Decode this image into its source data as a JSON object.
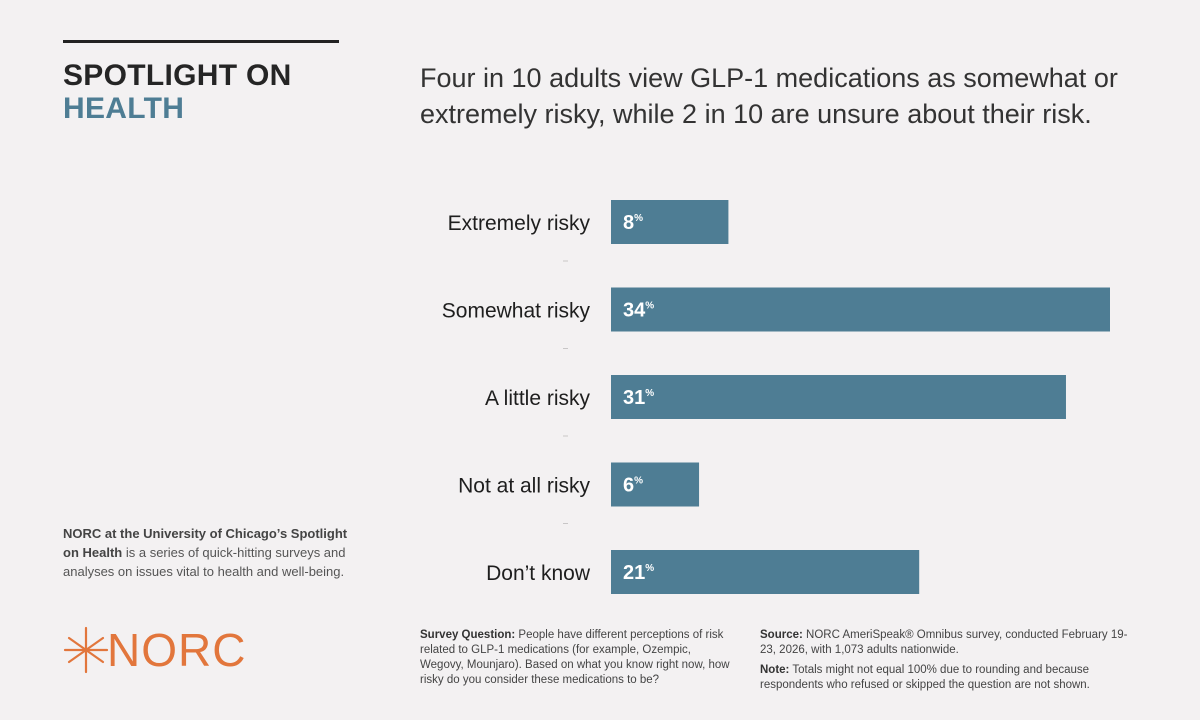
{
  "brand": {
    "line1": "SPOTLIGHT ON",
    "line2": "HEALTH"
  },
  "headline": "Four in 10 adults view GLP-1 medications as somewhat or extremely risky, while 2 in 10 are unsure about their risk.",
  "about": {
    "bold": "NORC at the University of Chicago’s Spotlight on Health",
    "text": " is a series of quick-hitting surveys and analyses on issues vital to health and well-being."
  },
  "logo": {
    "text": "NORC"
  },
  "footer": {
    "question_label": "Survey Question:",
    "question_text": " People have different perceptions of risk related to GLP-1 medications (for example, Ozempic, Wegovy, Mounjaro). Based on what you know right now, how risky do you consider these medications to be?",
    "source_label": "Source:",
    "source_text": " NORC AmeriSpeak® Omnibus survey, conducted February 19-23, 2026, with 1,073 adults nationwide.",
    "note_label": "Note:",
    "note_text": " Totals might not equal 100% due to rounding and because respondents who refused or skipped the question are not shown."
  },
  "colors": {
    "bar": "#4e7d94",
    "accent": "#e2763c",
    "brand_blue": "#4e7d94"
  },
  "chart_data": {
    "type": "bar",
    "orientation": "horizontal",
    "categories": [
      "Extremely risky",
      "Somewhat risky",
      "A little risky",
      "Not at all risky",
      "Don’t know"
    ],
    "values": [
      8,
      34,
      31,
      6,
      21
    ],
    "value_suffix": "%",
    "xlim": [
      0,
      34
    ]
  }
}
